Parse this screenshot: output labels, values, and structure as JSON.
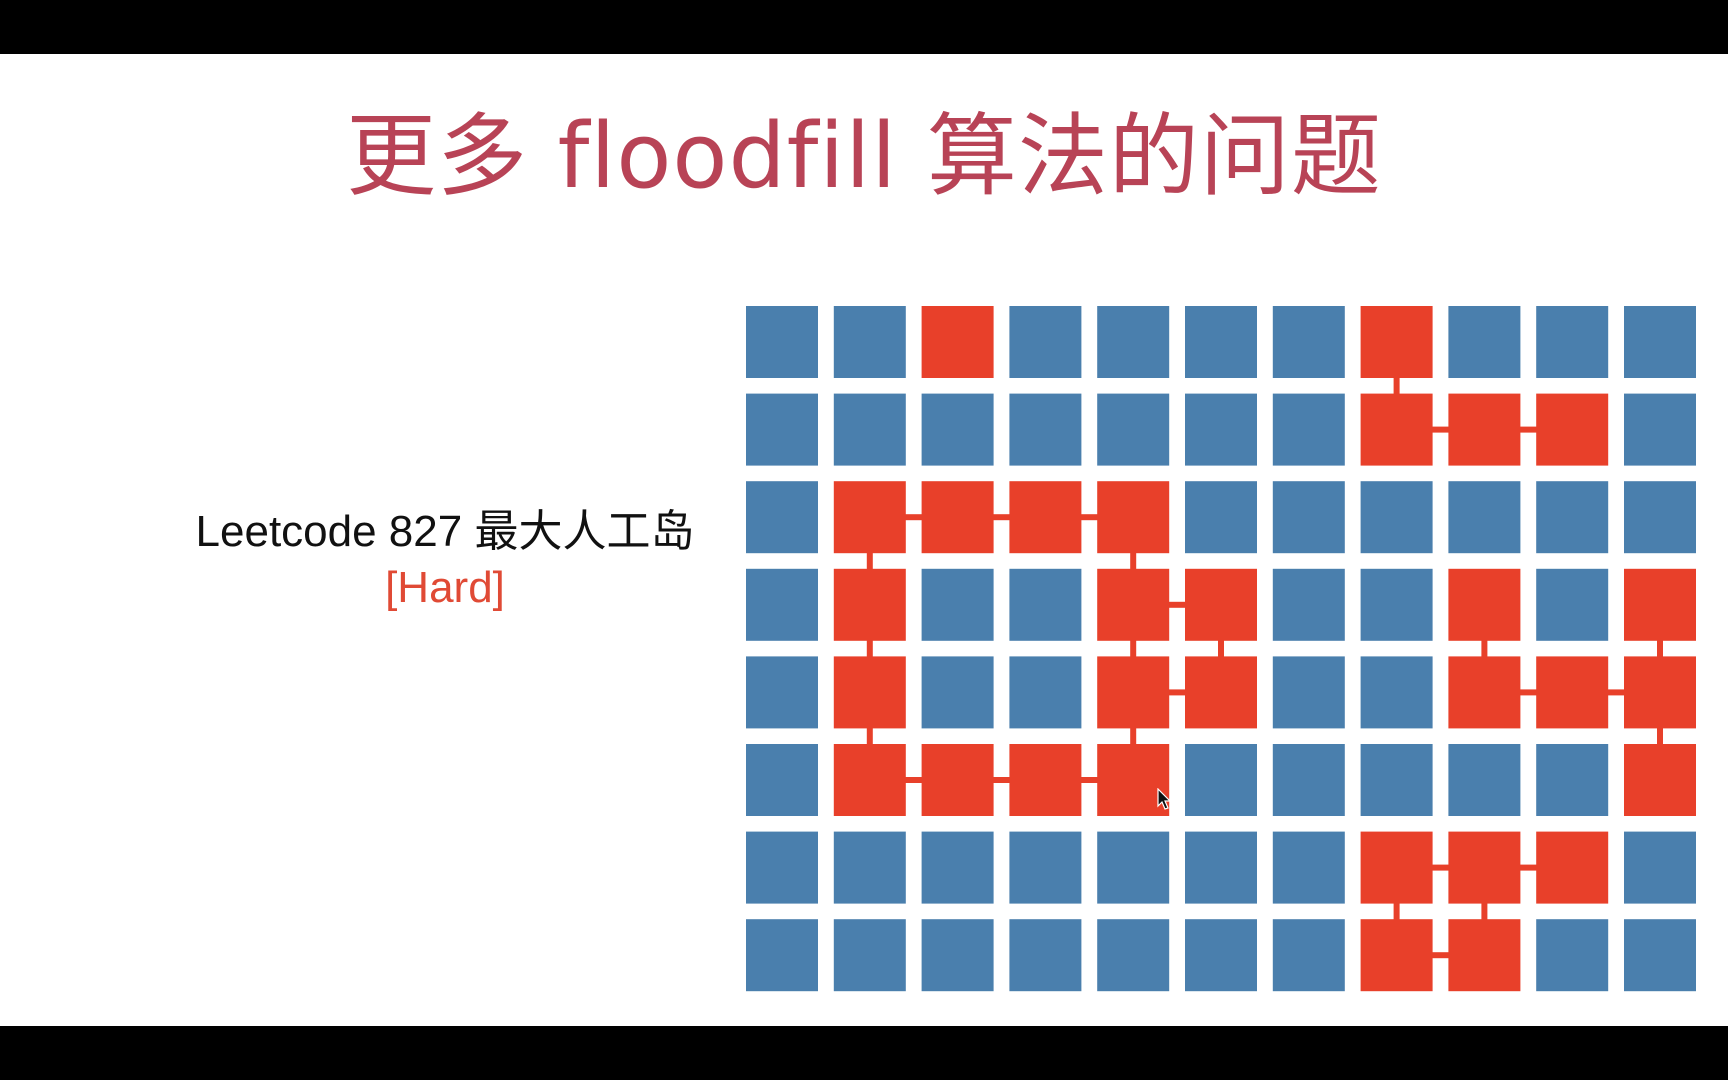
{
  "slide": {
    "title": "更多 floodfill 算法的问题",
    "problem_name": "Leetcode 827 最大人工岛",
    "problem_level": "[Hard]"
  },
  "colors": {
    "title": "#b84356",
    "water": "#4a7fad",
    "land": "#e8402a",
    "level": "#e04a35",
    "background": "#ffffff"
  },
  "grid": {
    "rows": 8,
    "cols": 11,
    "cells": [
      [
        0,
        0,
        1,
        0,
        0,
        0,
        0,
        1,
        0,
        0,
        0
      ],
      [
        0,
        0,
        0,
        0,
        0,
        0,
        0,
        1,
        1,
        1,
        0
      ],
      [
        0,
        1,
        1,
        1,
        1,
        0,
        0,
        0,
        0,
        0,
        0
      ],
      [
        0,
        1,
        0,
        0,
        1,
        1,
        0,
        0,
        1,
        0,
        1
      ],
      [
        0,
        1,
        0,
        0,
        1,
        1,
        0,
        0,
        1,
        1,
        1
      ],
      [
        0,
        1,
        1,
        1,
        1,
        0,
        0,
        0,
        0,
        0,
        1
      ],
      [
        0,
        0,
        0,
        0,
        0,
        0,
        0,
        1,
        1,
        1,
        0
      ],
      [
        0,
        0,
        0,
        0,
        0,
        0,
        0,
        1,
        1,
        0,
        0
      ]
    ]
  }
}
